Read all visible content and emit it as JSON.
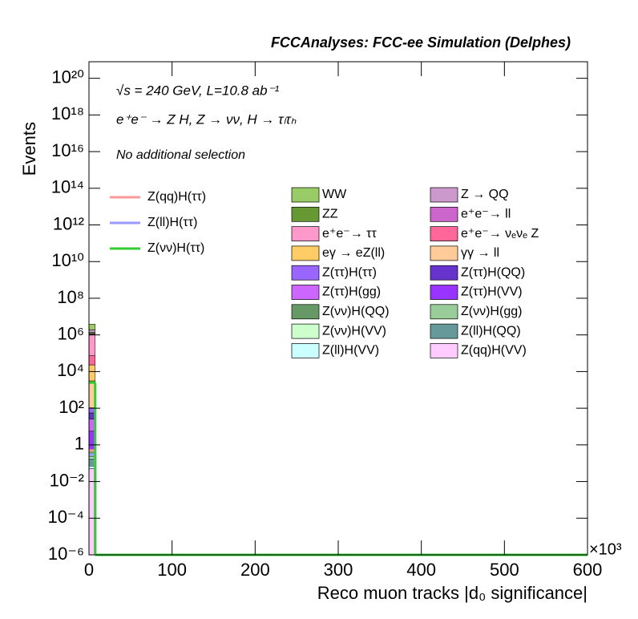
{
  "chart_data": {
    "type": "stacked_histogram",
    "title": "FCCAnalyses: FCC-ee Simulation (Delphes)",
    "annotations": [
      "√s = 240 GeV, L=10.8 ab⁻¹",
      "e⁺e⁻ → Z H, Z → νν, H → τₗτₕ",
      "No additional selection"
    ],
    "xlabel": "Reco muon tracks |d₀ significance|",
    "ylabel": "Events",
    "x_multiplier": "×10³",
    "log_y": true,
    "bins": [
      0,
      7.5,
      600
    ],
    "xlim": [
      0,
      600
    ],
    "xticks": [
      0,
      100,
      200,
      300,
      400,
      500,
      600
    ],
    "ylim": [
      1e-06,
      8e+20
    ],
    "yticks": [
      {
        "value": 1e-06,
        "label": "10⁻⁶"
      },
      {
        "value": 0.0001,
        "label": "10⁻⁴"
      },
      {
        "value": 0.01,
        "label": "10⁻²"
      },
      1,
      {
        "value": 100,
        "label": "10²"
      },
      {
        "value": 10000,
        "label": "10⁴"
      },
      {
        "value": 1000000.0,
        "label": "10⁶"
      },
      {
        "value": 100000000.0,
        "label": "10⁸"
      },
      {
        "value": 10000000000.0,
        "label": "10¹⁰"
      },
      {
        "value": 1000000000000.0,
        "label": "10¹²"
      },
      {
        "value": 100000000000000.0,
        "label": "10¹⁴"
      },
      {
        "value": 1e+16,
        "label": "10¹⁶"
      },
      {
        "value": 1e+18,
        "label": "10¹⁸"
      },
      {
        "value": 1e+20,
        "label": "10²⁰"
      }
    ],
    "signals": [
      {
        "name": "Z(qq)H(ττ)",
        "color": "#ff9999",
        "values": [
          0.5,
          0
        ]
      },
      {
        "name": "Z(ll)H(ττ)",
        "color": "#9999ff",
        "values": [
          0.3,
          0
        ]
      },
      {
        "name": "Z(νν)H(ττ)",
        "color": "#33cc33",
        "values": [
          2500,
          0
        ]
      }
    ],
    "series": [
      {
        "name": "WW",
        "color": "#99cc66",
        "values": [
          2000000,
          0
        ]
      },
      {
        "name": "Z → QQ",
        "color": "#cc99cc",
        "values": [
          500000,
          0
        ]
      },
      {
        "name": "ZZ",
        "color": "#669933",
        "values": [
          200000,
          0
        ]
      },
      {
        "name": "e⁺e⁻→ ll",
        "color": "#cc66cc",
        "values": [
          100000,
          0
        ]
      },
      {
        "name": "e⁺e⁻→ ττ",
        "color": "#ff99cc",
        "values": [
          1000000,
          0
        ]
      },
      {
        "name": "e⁺e⁻→ νₑνₑ Z",
        "color": "#ff6699",
        "values": [
          50000,
          0
        ]
      },
      {
        "name": "eγ → eZ(ll)",
        "color": "#ffcc66",
        "values": [
          20000,
          0
        ]
      },
      {
        "name": "γγ → ll",
        "color": "#ffcc99",
        "values": [
          3000,
          0
        ]
      },
      {
        "name": "Z(ττ)H(ττ)",
        "color": "#9966ff",
        "values": [
          50,
          0
        ]
      },
      {
        "name": "Z(ττ)H(QQ)",
        "color": "#6633cc",
        "values": [
          30,
          0
        ]
      },
      {
        "name": "Z(ττ)H(gg)",
        "color": "#cc66ff",
        "values": [
          20,
          0
        ]
      },
      {
        "name": "Z(ττ)H(VV)",
        "color": "#9933ff",
        "values": [
          5,
          0
        ]
      },
      {
        "name": "Z(νν)H(QQ)",
        "color": "#669966",
        "values": [
          0.3,
          0
        ]
      },
      {
        "name": "Z(νν)H(gg)",
        "color": "#99cc99",
        "values": [
          0.05,
          0
        ]
      },
      {
        "name": "Z(νν)H(VV)",
        "color": "#ccffcc",
        "values": [
          0.05,
          0
        ]
      },
      {
        "name": "Z(ll)H(QQ)",
        "color": "#669999",
        "values": [
          0.1,
          0
        ]
      },
      {
        "name": "Z(ll)H(VV)",
        "color": "#ccffff",
        "values": [
          0.02,
          0
        ]
      },
      {
        "name": "Z(qq)H(VV)",
        "color": "#ffccff",
        "values": [
          0.05,
          0
        ]
      }
    ]
  }
}
